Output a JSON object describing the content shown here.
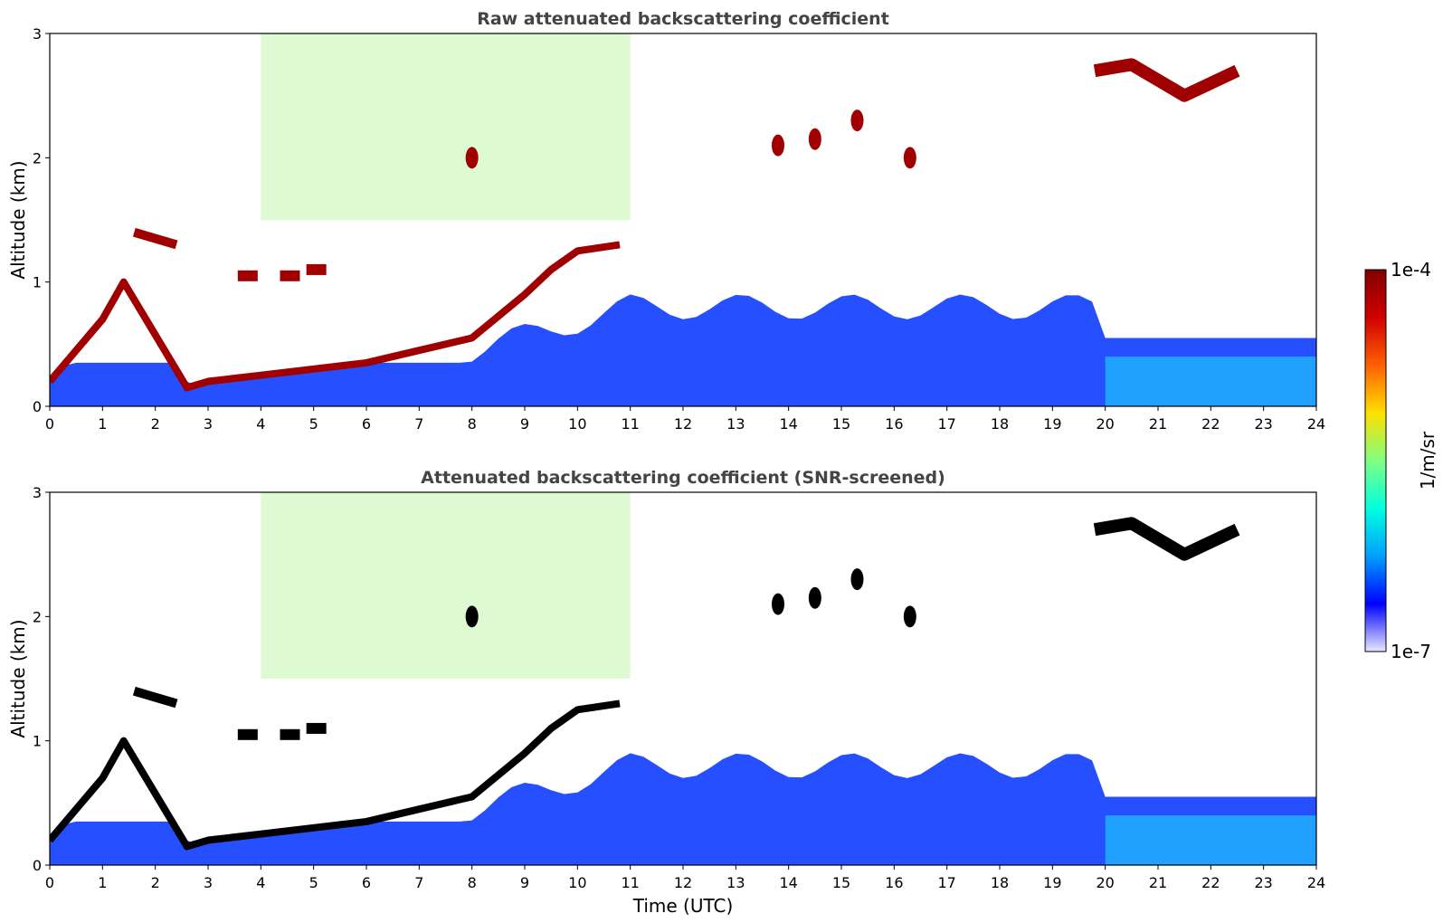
{
  "chart_data": [
    {
      "type": "heatmap",
      "title": "Raw attenuated backscattering coefficient",
      "xlabel": "",
      "ylabel": "Altitude (km)",
      "xlim": [
        0,
        24
      ],
      "ylim": [
        0,
        3
      ],
      "xticks": [
        "0",
        "1",
        "2",
        "3",
        "4",
        "5",
        "6",
        "7",
        "8",
        "9",
        "10",
        "11",
        "12",
        "13",
        "14",
        "15",
        "16",
        "17",
        "18",
        "19",
        "20",
        "21",
        "22",
        "23",
        "24"
      ],
      "yticks": [
        "0",
        "1",
        "2",
        "3"
      ],
      "features": {
        "boundary_layer_top_km": [
          [
            0,
            0.2
          ],
          [
            1,
            0.7
          ],
          [
            1.4,
            1.0
          ],
          [
            2.6,
            0.15
          ],
          [
            3,
            0.2
          ],
          [
            4,
            0.25
          ],
          [
            5,
            0.3
          ],
          [
            6,
            0.35
          ],
          [
            7,
            0.45
          ],
          [
            8,
            0.55
          ],
          [
            9,
            0.9
          ],
          [
            9.5,
            1.1
          ],
          [
            10,
            1.25
          ],
          [
            10.8,
            1.3
          ]
        ],
        "aerosol_layer_km": [
          [
            1.6,
            1.4
          ],
          [
            2.4,
            1.3
          ]
        ],
        "elevated_layers_km": [
          [
            3.7,
            1.05
          ],
          [
            4.5,
            1.05
          ],
          [
            5,
            1.1
          ]
        ],
        "cirrus_km": [
          [
            19.8,
            2.7
          ],
          [
            20.5,
            2.75
          ],
          [
            21.5,
            2.5
          ],
          [
            22.5,
            2.7
          ]
        ],
        "small_clouds_km": [
          [
            8,
            2.0
          ],
          [
            13.8,
            2.1
          ],
          [
            14.5,
            2.15
          ],
          [
            15.3,
            2.3
          ],
          [
            16.3,
            2.0
          ]
        ]
      }
    },
    {
      "type": "heatmap",
      "title": "Attenuated backscattering coefficient (SNR-screened)",
      "xlabel": "Time (UTC)",
      "ylabel": "Altitude (km)",
      "xlim": [
        0,
        24
      ],
      "ylim": [
        0,
        3
      ],
      "xticks": [
        "0",
        "1",
        "2",
        "3",
        "4",
        "5",
        "6",
        "7",
        "8",
        "9",
        "10",
        "11",
        "12",
        "13",
        "14",
        "15",
        "16",
        "17",
        "18",
        "19",
        "20",
        "21",
        "22",
        "23",
        "24"
      ],
      "yticks": [
        "0",
        "1",
        "2",
        "3"
      ],
      "features": {
        "boundary_layer_top_km": [
          [
            0,
            0.2
          ],
          [
            1,
            0.7
          ],
          [
            1.4,
            1.0
          ],
          [
            2.6,
            0.15
          ],
          [
            3,
            0.2
          ],
          [
            4,
            0.25
          ],
          [
            5,
            0.3
          ],
          [
            6,
            0.35
          ],
          [
            7,
            0.45
          ],
          [
            8,
            0.55
          ],
          [
            9,
            0.9
          ],
          [
            9.5,
            1.1
          ],
          [
            10,
            1.25
          ],
          [
            10.8,
            1.3
          ]
        ],
        "aerosol_layer_km": [
          [
            1.6,
            1.4
          ],
          [
            2.4,
            1.3
          ]
        ],
        "elevated_layers_km": [
          [
            3.7,
            1.05
          ],
          [
            4.5,
            1.05
          ],
          [
            5,
            1.1
          ]
        ],
        "cirrus_km": [
          [
            19.8,
            2.7
          ],
          [
            20.5,
            2.75
          ],
          [
            21.5,
            2.5
          ],
          [
            22.5,
            2.7
          ]
        ],
        "small_clouds_km": [
          [
            8,
            2.0
          ],
          [
            13.8,
            2.1
          ],
          [
            14.5,
            2.15
          ],
          [
            15.3,
            2.3
          ],
          [
            16.3,
            2.0
          ]
        ]
      }
    }
  ],
  "colorbar": {
    "label": "1/m/sr",
    "max_label": "1e-4",
    "min_label": "1e-7",
    "range": [
      1e-07,
      0.0001
    ],
    "colors": [
      "#e8e8ff",
      "#0000ff",
      "#00a0ff",
      "#00ffe0",
      "#80ff80",
      "#ffe000",
      "#ff6000",
      "#d00000",
      "#800000"
    ]
  },
  "colors": {
    "background": "#ffffff",
    "text": "#444444",
    "saturated_screened": "#000000"
  }
}
